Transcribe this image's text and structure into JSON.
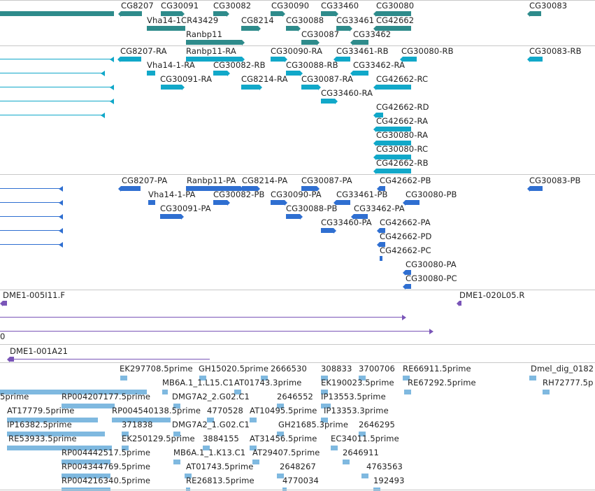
{
  "colors": {
    "gene": "#2e8b8b",
    "rna": "#11a8c9",
    "protein": "#2f6fd1",
    "clone": "#7a55b8",
    "est": "#7fb9e0",
    "separator": "#c8c8c8"
  },
  "tracks": {
    "genes": {
      "labels": [
        "CG8207",
        "CG30091",
        "CG30082",
        "CG30090",
        "CG33460",
        "CG30080",
        "CG30083",
        "Vha14-1CR43429",
        "CG8214",
        "CG30088",
        "CG33461",
        "CG42662",
        "Ranbp11",
        "CG30087",
        "CG33462"
      ]
    },
    "transcripts": {
      "labels": [
        "CG8207-RA",
        "Ranbp11-RA",
        "CG30090-RA",
        "CG33461-RB",
        "CG30080-RB",
        "CG30083-RB",
        "Vha14-1-RA",
        "CG30082-RB",
        "CG30088-RB",
        "CG33462-RA",
        "CG30091-RA",
        "CG8214-RA",
        "CG30087-RA",
        "CG42662-RC",
        "CG33460-RA",
        "CG42662-RD",
        "CG42662-RA",
        "CG30080-RA",
        "CG30080-RC",
        "CG42662-RB"
      ]
    },
    "proteins": {
      "labels": [
        "CG8207-PA",
        "Ranbp11-PA",
        "CG8214-PA",
        "CG30087-PA",
        "CG42662-PB",
        "CG30083-PB",
        "Vha14-1-PA",
        "CG30082-PB",
        "CG30090-PA",
        "CG33461-PB",
        "CG30080-PB",
        "CG30091-PA",
        "CG30088-PB",
        "CG33462-PA",
        "CG33460-PA",
        "CG42662-PA",
        "CG42662-PD",
        "CG42662-PC",
        "CG30080-PA",
        "CG30080-PC"
      ]
    },
    "clones": {
      "labels": [
        "DME1-005I11.F",
        "DME1-020L05.R",
        "0",
        "DME1-001A21"
      ]
    },
    "ests": {
      "labels": [
        "EK297708.5prime",
        "GH15020.5prime",
        "2666530",
        "308833",
        "3700706",
        "RE66911.5prime",
        "Dmel_dig_0182",
        "MB6A.1_1.L15.C1",
        "AT01743.3prime",
        "EK190023.5prime",
        "RE67292.5prime",
        "RH72777.5p",
        "5prime",
        "RP004207177.5prime",
        "DMG7A2_2.G02.C1",
        "2646552",
        "IP13553.5prime",
        "AT17779.5prime",
        "RP004540138.5prime",
        "4770528",
        "AT10495.5prime",
        "IP13353.3prime",
        "IP16382.5prime",
        "371838",
        "DMG7A2_1.G02.C1",
        "GH21685.3prime",
        "2646295",
        "RE53933.5prime",
        "EK250129.5prime",
        "3884155",
        "AT31456.5prime",
        "EC34011.5prime",
        "RP004442517.5prime",
        "MB6A.1_1.K13.C1",
        "AT29407.5prime",
        "2646911",
        "RP004344769.5prime",
        "AT01743.5prime",
        "2648267",
        "4763563",
        "RP004216340.5prime",
        "RE26813.5prime",
        "4770034",
        "192493"
      ]
    }
  }
}
